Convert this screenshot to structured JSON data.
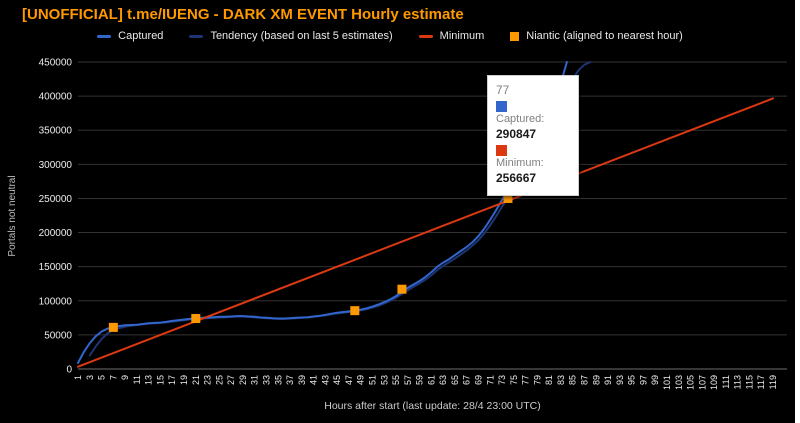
{
  "title": "[UNOFFICIAL] t.me/IUENG - DARK XM EVENT Hourly estimate",
  "colors": {
    "background": "#000000",
    "title": "#ff9900",
    "captured": "#3366cc",
    "tendency": "#1d3572",
    "minimum": "#dc3912",
    "niantic": "#ff9900",
    "grid": "#333333",
    "baseline": "#6e6e6e",
    "tick_text": "#ededed",
    "axis_title_text": "#bdbdbd"
  },
  "legend": {
    "items": [
      {
        "label": "Captured",
        "marker": "dash",
        "color": "#3366cc"
      },
      {
        "label": "Tendency (based on last 5 estimates)",
        "marker": "dash",
        "color": "#1d3572"
      },
      {
        "label": "Minimum",
        "marker": "dash",
        "color": "#dc3912"
      },
      {
        "label": "Niantic (aligned to nearest hour)",
        "marker": "square",
        "color": "#ff9900"
      }
    ]
  },
  "tooltip": {
    "header": "77",
    "entries": [
      {
        "label": "Captured:",
        "value": "290847",
        "color": "#3366cc"
      },
      {
        "label": "Minimum:",
        "value": "256667",
        "color": "#dc3912"
      }
    ]
  },
  "chart_data": {
    "type": "line",
    "title": "[UNOFFICIAL] t.me/IUENG - DARK XM EVENT Hourly estimate",
    "xlabel": "Hours after start (last update: 28/4 23:00 UTC)",
    "ylabel": "Portals not neutral",
    "xlim": [
      1,
      119
    ],
    "ylim": [
      0,
      450000
    ],
    "grid": "horizontal",
    "legend_position": "top",
    "y_ticks": [
      0,
      50000,
      100000,
      150000,
      200000,
      250000,
      300000,
      350000,
      400000,
      450000
    ],
    "x_ticks": [
      1,
      3,
      5,
      7,
      9,
      11,
      13,
      15,
      17,
      19,
      21,
      23,
      25,
      27,
      29,
      31,
      33,
      35,
      37,
      39,
      41,
      43,
      45,
      47,
      49,
      51,
      53,
      55,
      57,
      59,
      61,
      63,
      65,
      67,
      69,
      71,
      73,
      75,
      77,
      79,
      81,
      83,
      85,
      87,
      89,
      91,
      93,
      95,
      97,
      99,
      101,
      103,
      105,
      107,
      109,
      111,
      113,
      115,
      117,
      119
    ],
    "series": [
      {
        "name": "Captured",
        "type": "line",
        "x_start": 1,
        "x_step": 1,
        "values": [
          9000,
          25000,
          38000,
          48000,
          55000,
          59000,
          61500,
          63000,
          64000,
          64500,
          65000,
          66000,
          67000,
          67500,
          68000,
          69000,
          70500,
          71500,
          72500,
          73500,
          74500,
          75000,
          75500,
          76000,
          76500,
          76500,
          77000,
          77500,
          77500,
          77000,
          76500,
          75500,
          75000,
          74500,
          74000,
          74000,
          74500,
          75000,
          75500,
          76000,
          77000,
          78000,
          79500,
          81000,
          82500,
          83500,
          84500,
          85500,
          87000,
          89000,
          91500,
          94500,
          98000,
          102000,
          107000,
          113000,
          119000,
          124000,
          129000,
          135000,
          142000,
          150000,
          156000,
          161000,
          167000,
          173000,
          179000,
          186000,
          195000,
          206000,
          219000,
          233000,
          248000,
          262000,
          273000,
          282000,
          290847,
          302000,
          318000,
          338000,
          362000,
          390000,
          420000,
          450000
        ]
      },
      {
        "name": "Tendency (based on last 5 estimates)",
        "type": "line",
        "x_start": 3,
        "x_step": 1,
        "values": [
          20000,
          33000,
          44000,
          52000,
          57000,
          60000,
          62000,
          63500,
          64500,
          65500,
          66500,
          67000,
          67500,
          68500,
          69500,
          70500,
          71500,
          72500,
          73500,
          74000,
          74500,
          75000,
          75500,
          76000,
          76500,
          77000,
          77000,
          76500,
          76000,
          75000,
          74500,
          74000,
          73500,
          73500,
          74000,
          74500,
          75000,
          75500,
          76500,
          77500,
          78500,
          80000,
          81500,
          82500,
          83500,
          84500,
          86000,
          87500,
          90000,
          92500,
          96000,
          100000,
          104500,
          110000,
          115500,
          120500,
          125500,
          131000,
          137500,
          145000,
          151000,
          156500,
          162000,
          168000,
          174000,
          181000,
          189000,
          199000,
          211000,
          224000,
          238000,
          252000,
          263500,
          273000,
          281500,
          293000,
          308000,
          326000,
          346000,
          367000,
          388000,
          408000,
          425000,
          438000,
          446000,
          450000
        ]
      },
      {
        "name": "Minimum",
        "type": "line",
        "x": [
          1,
          119
        ],
        "values": [
          3333,
          396667
        ]
      },
      {
        "name": "Niantic (aligned to nearest hour)",
        "type": "scatter",
        "x": [
          7,
          21,
          48,
          56,
          74
        ],
        "values": [
          61000,
          74000,
          85500,
          117000,
          250000
        ]
      }
    ],
    "tooltip_point": {
      "x": 77,
      "captured": 290847,
      "minimum": 256667
    }
  }
}
